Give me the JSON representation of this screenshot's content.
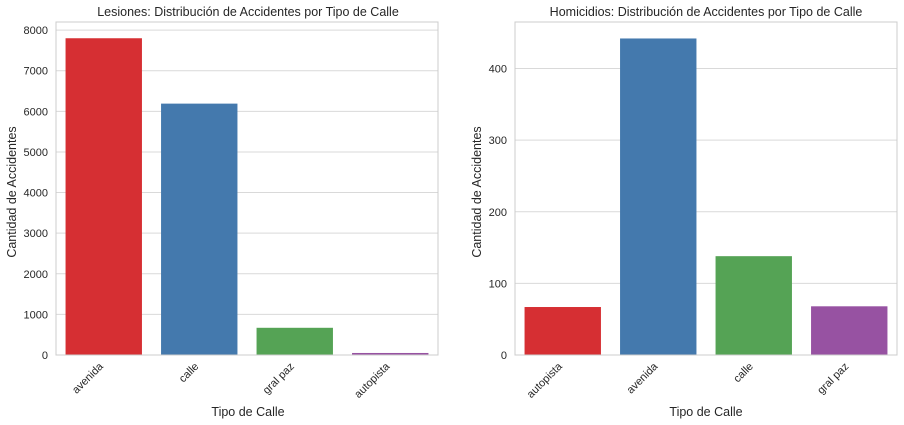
{
  "chart_data": [
    {
      "type": "bar",
      "title": "Lesiones: Distribución de Accidentes por Tipo de Calle",
      "xlabel": "Tipo de Calle",
      "ylabel": "Cantidad de Accidentes",
      "categories": [
        "avenida",
        "calle",
        "gral paz",
        "autopista"
      ],
      "values": [
        7800,
        6190,
        670,
        50
      ],
      "colors": [
        "#d62f33",
        "#4479ad",
        "#55a355",
        "#9752a2"
      ],
      "ylim": [
        0,
        8200
      ],
      "yticks": [
        0,
        1000,
        2000,
        3000,
        4000,
        5000,
        6000,
        7000,
        8000
      ],
      "grid": true
    },
    {
      "type": "bar",
      "title": "Homicidios: Distribución de Accidentes por Tipo de Calle",
      "xlabel": "Tipo de Calle",
      "ylabel": "Cantidad de Accidentes",
      "categories": [
        "autopista",
        "avenida",
        "calle",
        "gral paz"
      ],
      "values": [
        67,
        442,
        138,
        68
      ],
      "colors": [
        "#d62f33",
        "#4479ad",
        "#55a355",
        "#9752a2"
      ],
      "ylim": [
        0,
        465
      ],
      "yticks": [
        0,
        100,
        200,
        300,
        400
      ],
      "grid": true
    }
  ]
}
